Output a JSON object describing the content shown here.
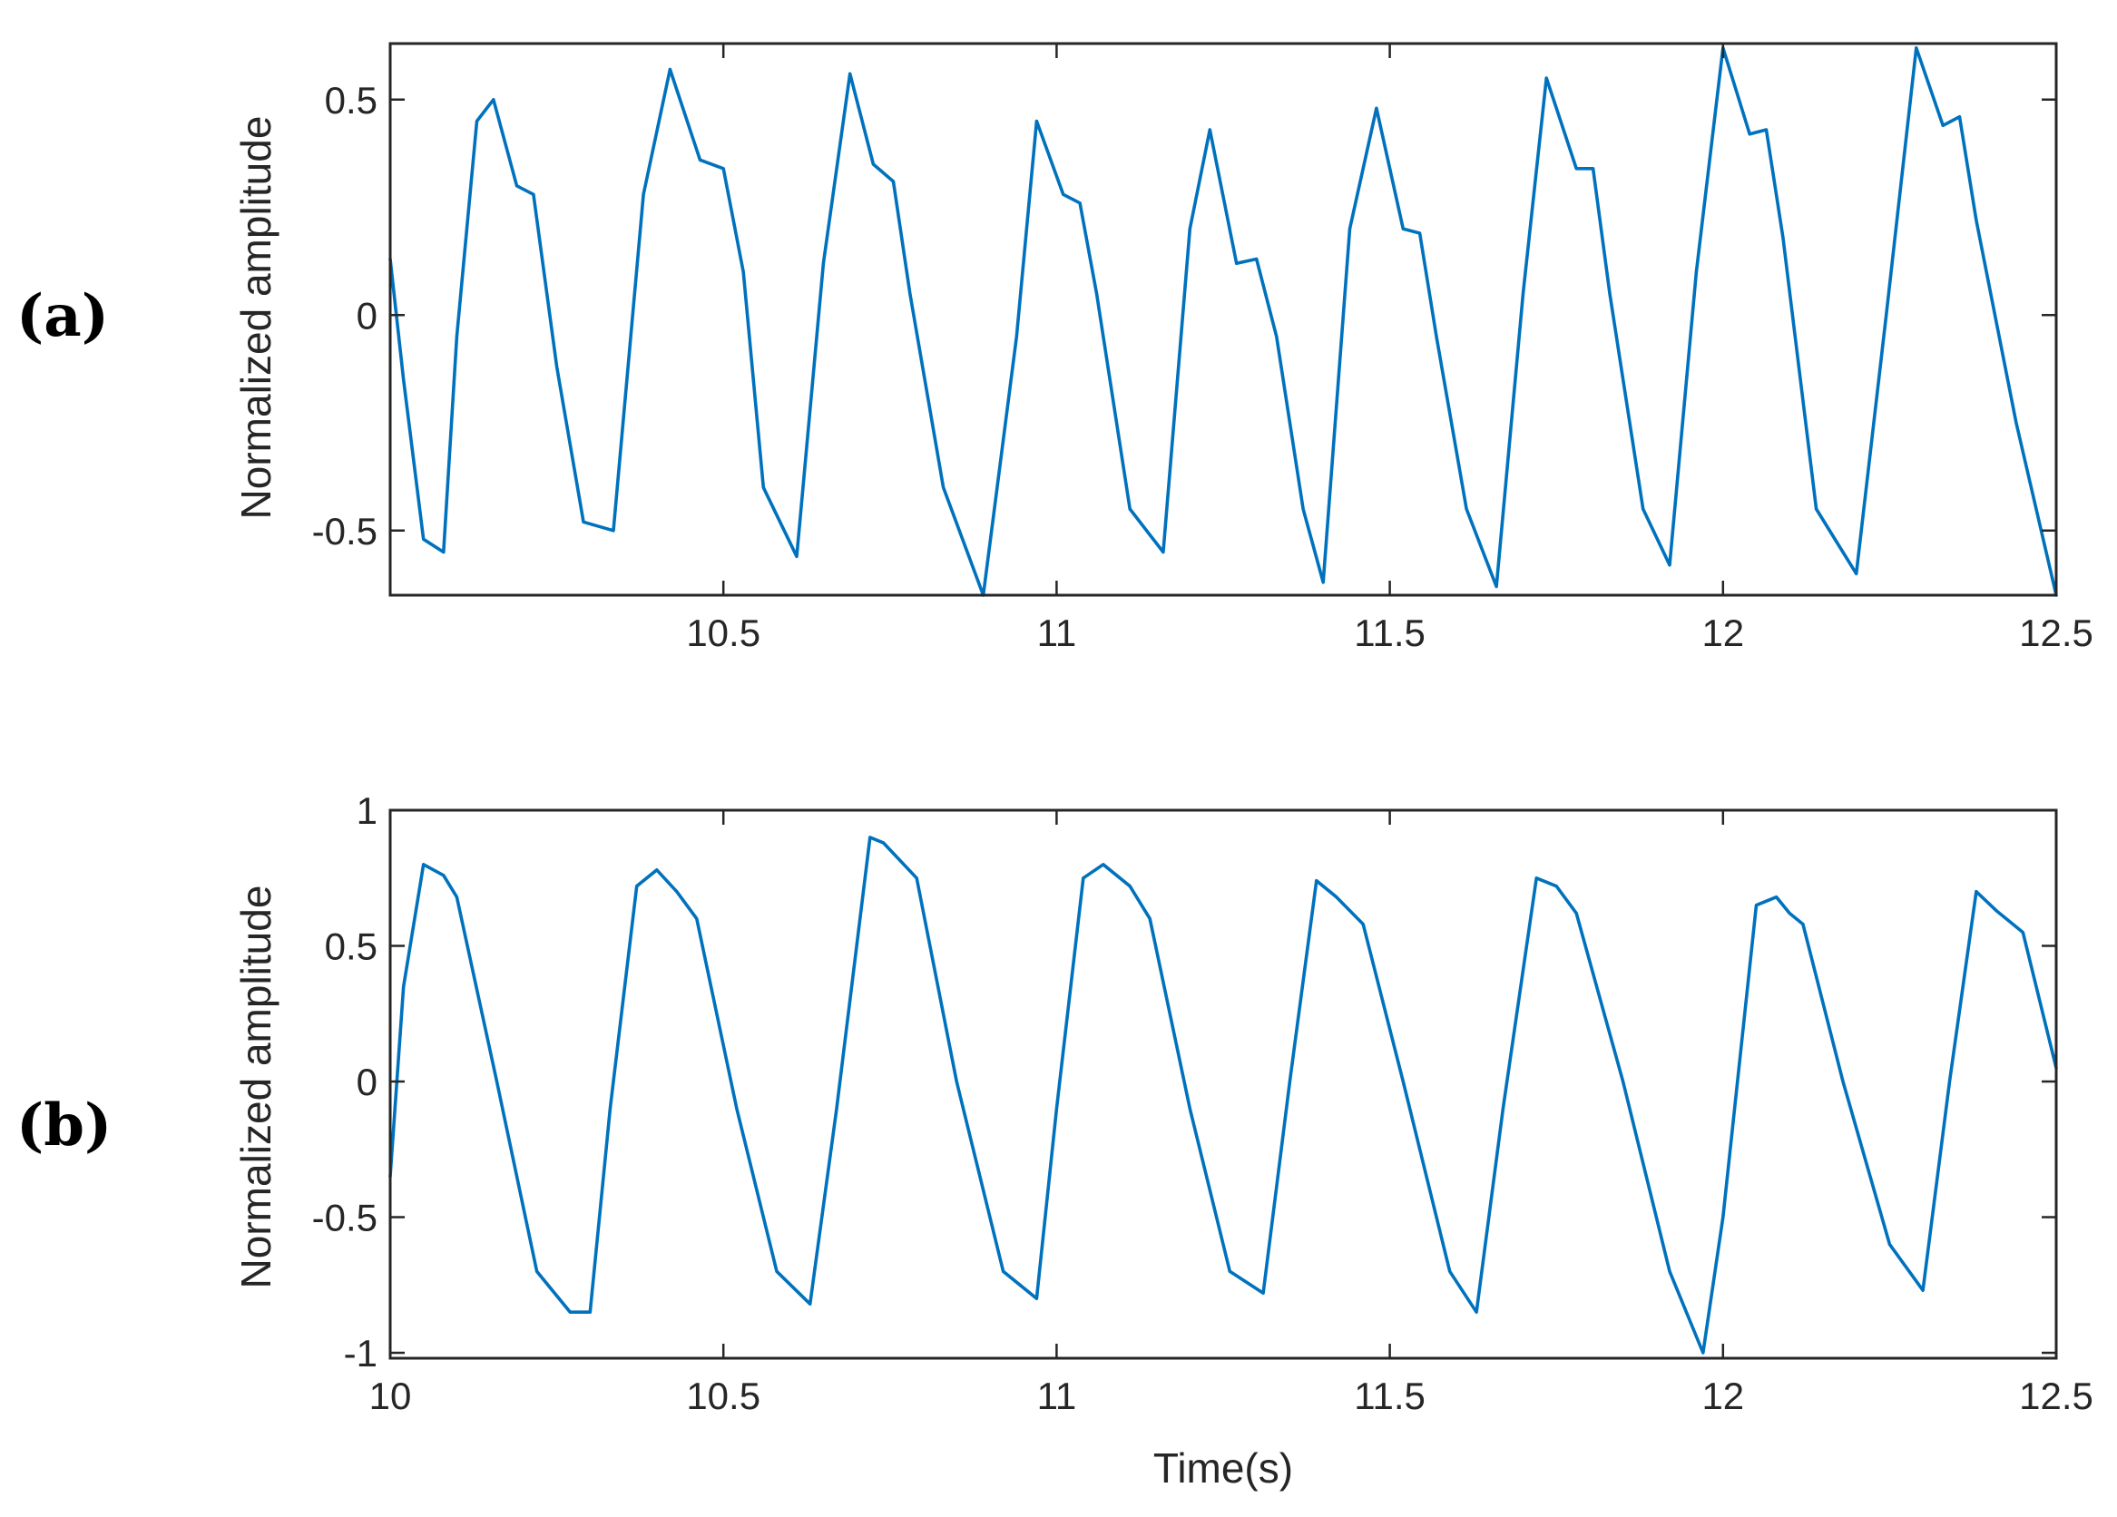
{
  "chart_data": [
    {
      "type": "line",
      "panel_label": "(a)",
      "xlabel": "",
      "ylabel": "Normalized amplitude",
      "xlim": [
        10,
        12.5
      ],
      "ylim": [
        -0.65,
        0.63
      ],
      "xticks": [
        10.5,
        11,
        11.5,
        12,
        12.5
      ],
      "xtick_labels": [
        "10.5",
        "11",
        "11.5",
        "12",
        "12.5"
      ],
      "yticks": [
        -0.5,
        0,
        0.5
      ],
      "ytick_labels": [
        "-0.5",
        "0",
        "0.5"
      ],
      "color": "#0072BD",
      "series": [
        {
          "x": [
            10.0,
            10.02,
            10.05,
            10.08,
            10.1,
            10.13,
            10.155,
            10.19,
            10.215,
            10.25,
            10.29,
            10.335,
            10.38,
            10.42,
            10.465,
            10.5,
            10.53,
            10.56,
            10.61,
            10.65,
            10.69,
            10.725,
            10.755,
            10.78,
            10.83,
            10.89,
            10.94,
            10.97,
            11.01,
            11.035,
            11.06,
            11.11,
            11.16,
            11.2,
            11.23,
            11.27,
            11.3,
            11.33,
            11.37,
            11.4,
            11.44,
            11.48,
            11.52,
            11.545,
            11.57,
            11.615,
            11.66,
            11.7,
            11.735,
            11.78,
            11.805,
            11.83,
            11.88,
            11.92,
            11.96,
            12.0,
            12.04,
            12.065,
            12.09,
            12.14,
            12.2,
            12.245,
            12.29,
            12.33,
            12.355,
            12.38,
            12.44,
            12.5
          ],
          "y": [
            0.13,
            -0.15,
            -0.52,
            -0.55,
            -0.05,
            0.45,
            0.5,
            0.3,
            0.28,
            -0.12,
            -0.48,
            -0.5,
            0.28,
            0.57,
            0.36,
            0.34,
            0.1,
            -0.4,
            -0.56,
            0.12,
            0.56,
            0.35,
            0.31,
            0.05,
            -0.4,
            -0.65,
            -0.05,
            0.45,
            0.28,
            0.26,
            0.05,
            -0.45,
            -0.55,
            0.2,
            0.43,
            0.12,
            0.13,
            -0.05,
            -0.45,
            -0.62,
            0.2,
            0.48,
            0.2,
            0.19,
            -0.05,
            -0.45,
            -0.63,
            0.05,
            0.55,
            0.34,
            0.34,
            0.05,
            -0.45,
            -0.58,
            0.1,
            0.62,
            0.42,
            0.43,
            0.18,
            -0.45,
            -0.6,
            0.0,
            0.62,
            0.44,
            0.46,
            0.22,
            -0.25,
            -0.65
          ]
        }
      ]
    },
    {
      "type": "line",
      "panel_label": "(b)",
      "xlabel": "Time(s)",
      "ylabel": "Normalized amplitude",
      "xlim": [
        10,
        12.5
      ],
      "ylim": [
        -1.02,
        1.0
      ],
      "xticks": [
        10,
        10.5,
        11,
        11.5,
        12,
        12.5
      ],
      "xtick_labels": [
        "10",
        "10.5",
        "11",
        "11.5",
        "12",
        "12.5"
      ],
      "yticks": [
        -1,
        -0.5,
        0,
        0.5,
        1
      ],
      "ytick_labels": [
        "-1",
        "-0.5",
        "0",
        "0.5",
        "1"
      ],
      "color": "#0072BD",
      "series": [
        {
          "x": [
            10.0,
            10.02,
            10.05,
            10.08,
            10.1,
            10.16,
            10.22,
            10.27,
            10.3,
            10.33,
            10.37,
            10.4,
            10.43,
            10.46,
            10.52,
            10.58,
            10.63,
            10.67,
            10.72,
            10.74,
            10.79,
            10.85,
            10.92,
            10.97,
            11.0,
            11.04,
            11.07,
            11.11,
            11.14,
            11.2,
            11.26,
            11.31,
            11.35,
            11.39,
            11.42,
            11.46,
            11.52,
            11.59,
            11.63,
            11.67,
            11.72,
            11.75,
            11.78,
            11.85,
            11.92,
            11.97,
            12.0,
            12.05,
            12.08,
            12.1,
            12.12,
            12.18,
            12.25,
            12.3,
            12.34,
            12.38,
            12.41,
            12.45,
            12.5
          ],
          "y": [
            -0.35,
            0.35,
            0.8,
            0.76,
            0.68,
            0.0,
            -0.7,
            -0.85,
            -0.85,
            -0.1,
            0.72,
            0.78,
            0.7,
            0.6,
            -0.1,
            -0.7,
            -0.82,
            -0.1,
            0.9,
            0.88,
            0.75,
            0.0,
            -0.7,
            -0.8,
            -0.1,
            0.75,
            0.8,
            0.72,
            0.6,
            -0.1,
            -0.7,
            -0.78,
            0.0,
            0.74,
            0.68,
            0.58,
            0.0,
            -0.7,
            -0.85,
            -0.1,
            0.75,
            0.72,
            0.62,
            0.0,
            -0.7,
            -1.0,
            -0.5,
            0.65,
            0.68,
            0.62,
            0.58,
            0.0,
            -0.6,
            -0.77,
            0.0,
            0.7,
            0.63,
            0.55,
            0.05
          ]
        }
      ]
    }
  ]
}
